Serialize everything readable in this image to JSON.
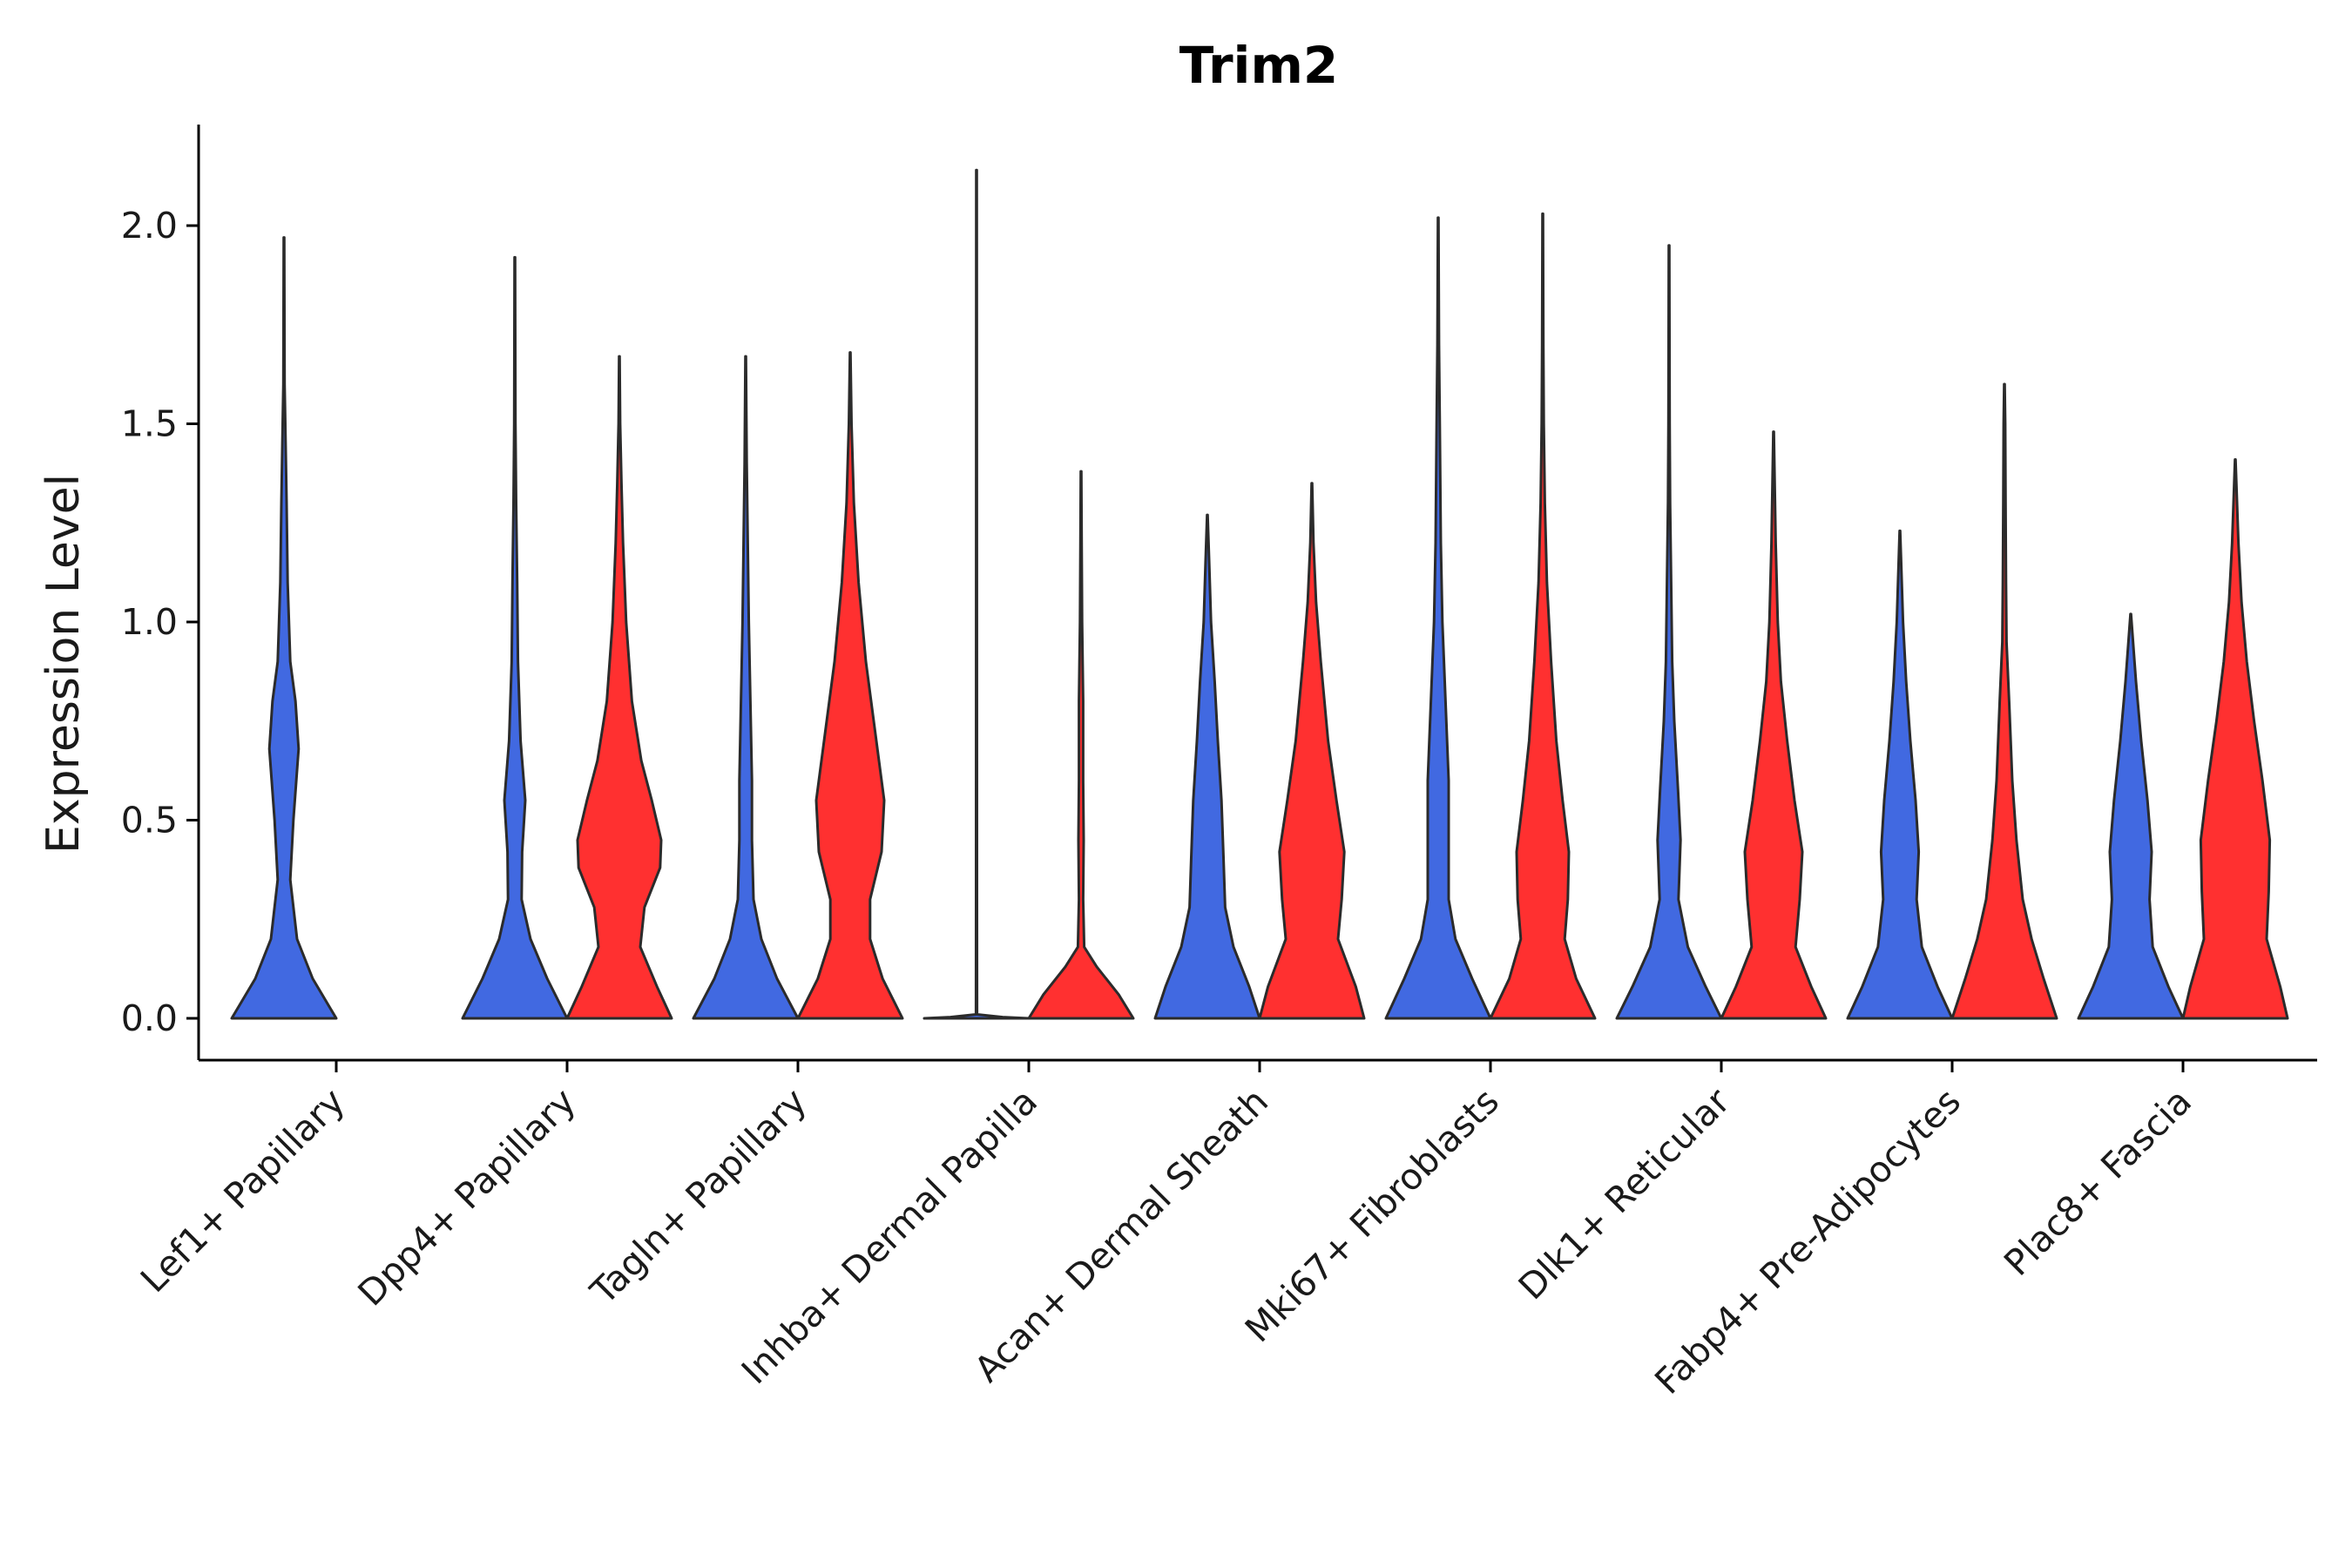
{
  "chart_data": {
    "type": "violin",
    "title": "Trim2",
    "xlabel": "",
    "ylabel": "Expression Level",
    "ylim": [
      -0.11,
      2.25
    ],
    "yticks": [
      0.0,
      0.5,
      1.0,
      1.5,
      2.0
    ],
    "ytick_labels": [
      "0.0",
      "0.5",
      "1.0",
      "1.5",
      "2.0"
    ],
    "grid": false,
    "legend": "none",
    "group_colors": {
      "blue": "#4169E1",
      "red": "#FF3030"
    },
    "categories": [
      "Lef1+ Papillary",
      "Dpp4+ Papillary",
      "Tagln+ Papillary",
      "Inhba+ Dermal Papilla",
      "Acan+ Dermal Sheath",
      "Mki67+ Fibroblasts",
      "Dlk1+ Reticular",
      "Fabp4+ Pre-Adipocytes",
      "Plac8+ Fascia"
    ],
    "violins": [
      {
        "category": "Lef1+ Papillary",
        "group": "blue",
        "max": 1.97,
        "density": [
          [
            0,
            1.0
          ],
          [
            0.1,
            0.55
          ],
          [
            0.2,
            0.25
          ],
          [
            0.35,
            0.12
          ],
          [
            0.5,
            0.18
          ],
          [
            0.68,
            0.28
          ],
          [
            0.8,
            0.22
          ],
          [
            0.9,
            0.12
          ],
          [
            1.1,
            0.07
          ],
          [
            1.3,
            0.05
          ],
          [
            1.5,
            0.025
          ],
          [
            1.6,
            0.012
          ],
          [
            1.97,
            0.005
          ]
        ]
      },
      {
        "category": "Dpp4+ Papillary",
        "group": "blue",
        "max": 1.92,
        "density": [
          [
            0,
            1.0
          ],
          [
            0.1,
            0.62
          ],
          [
            0.2,
            0.3
          ],
          [
            0.3,
            0.13
          ],
          [
            0.42,
            0.14
          ],
          [
            0.55,
            0.2
          ],
          [
            0.7,
            0.11
          ],
          [
            0.9,
            0.06
          ],
          [
            1.1,
            0.045
          ],
          [
            1.3,
            0.025
          ],
          [
            1.5,
            0.012
          ],
          [
            1.92,
            0.005
          ]
        ]
      },
      {
        "category": "Dpp4+ Papillary",
        "group": "red",
        "max": 1.67,
        "density": [
          [
            0,
            1.0
          ],
          [
            0.08,
            0.72
          ],
          [
            0.18,
            0.4
          ],
          [
            0.28,
            0.48
          ],
          [
            0.38,
            0.78
          ],
          [
            0.45,
            0.8
          ],
          [
            0.55,
            0.62
          ],
          [
            0.65,
            0.42
          ],
          [
            0.8,
            0.24
          ],
          [
            1.0,
            0.13
          ],
          [
            1.2,
            0.07
          ],
          [
            1.35,
            0.04
          ],
          [
            1.5,
            0.015
          ],
          [
            1.67,
            0.005
          ]
        ]
      },
      {
        "category": "Tagln+ Papillary",
        "group": "blue",
        "max": 1.67,
        "density": [
          [
            0,
            1.0
          ],
          [
            0.1,
            0.6
          ],
          [
            0.2,
            0.3
          ],
          [
            0.3,
            0.15
          ],
          [
            0.45,
            0.12
          ],
          [
            0.6,
            0.12
          ],
          [
            0.8,
            0.09
          ],
          [
            1.0,
            0.06
          ],
          [
            1.2,
            0.04
          ],
          [
            1.4,
            0.02
          ],
          [
            1.67,
            0.005
          ]
        ]
      },
      {
        "category": "Tagln+ Papillary",
        "group": "red",
        "max": 1.68,
        "density": [
          [
            0,
            1.0
          ],
          [
            0.1,
            0.62
          ],
          [
            0.2,
            0.38
          ],
          [
            0.3,
            0.38
          ],
          [
            0.42,
            0.6
          ],
          [
            0.55,
            0.65
          ],
          [
            0.7,
            0.5
          ],
          [
            0.9,
            0.3
          ],
          [
            1.1,
            0.16
          ],
          [
            1.3,
            0.07
          ],
          [
            1.5,
            0.025
          ],
          [
            1.68,
            0.005
          ]
        ]
      },
      {
        "category": "Inhba+ Dermal Papilla",
        "group": "blue",
        "max": 2.14,
        "density": [
          [
            0,
            1.0
          ],
          [
            0.003,
            0.5
          ],
          [
            0.01,
            0.01
          ],
          [
            0.3,
            0.008
          ],
          [
            2.14,
            0.005
          ]
        ]
      },
      {
        "category": "Inhba+ Dermal Papilla",
        "group": "red",
        "max": 1.38,
        "density": [
          [
            0,
            1.0
          ],
          [
            0.06,
            0.72
          ],
          [
            0.13,
            0.3
          ],
          [
            0.18,
            0.06
          ],
          [
            0.3,
            0.04
          ],
          [
            0.45,
            0.05
          ],
          [
            0.6,
            0.04
          ],
          [
            0.8,
            0.04
          ],
          [
            1.0,
            0.02
          ],
          [
            1.2,
            0.012
          ],
          [
            1.38,
            0.005
          ]
        ]
      },
      {
        "category": "Acan+ Dermal Sheath",
        "group": "blue",
        "max": 1.27,
        "density": [
          [
            0,
            1.0
          ],
          [
            0.08,
            0.8
          ],
          [
            0.18,
            0.5
          ],
          [
            0.28,
            0.34
          ],
          [
            0.4,
            0.31
          ],
          [
            0.55,
            0.27
          ],
          [
            0.7,
            0.2
          ],
          [
            0.85,
            0.14
          ],
          [
            1.0,
            0.07
          ],
          [
            1.15,
            0.035
          ],
          [
            1.27,
            0.005
          ]
        ]
      },
      {
        "category": "Acan+ Dermal Sheath",
        "group": "red",
        "max": 1.35,
        "density": [
          [
            0,
            1.0
          ],
          [
            0.08,
            0.84
          ],
          [
            0.2,
            0.5
          ],
          [
            0.3,
            0.57
          ],
          [
            0.42,
            0.62
          ],
          [
            0.55,
            0.47
          ],
          [
            0.7,
            0.31
          ],
          [
            0.9,
            0.17
          ],
          [
            1.05,
            0.08
          ],
          [
            1.2,
            0.03
          ],
          [
            1.35,
            0.005
          ]
        ]
      },
      {
        "category": "Mki67+ Fibroblasts",
        "group": "blue",
        "max": 2.02,
        "density": [
          [
            0,
            1.0
          ],
          [
            0.1,
            0.65
          ],
          [
            0.2,
            0.33
          ],
          [
            0.3,
            0.2
          ],
          [
            0.45,
            0.2
          ],
          [
            0.6,
            0.2
          ],
          [
            0.8,
            0.14
          ],
          [
            1.0,
            0.08
          ],
          [
            1.2,
            0.05
          ],
          [
            1.5,
            0.03
          ],
          [
            1.7,
            0.015
          ],
          [
            2.02,
            0.005
          ]
        ]
      },
      {
        "category": "Mki67+ Fibroblasts",
        "group": "red",
        "max": 2.03,
        "density": [
          [
            0,
            1.0
          ],
          [
            0.1,
            0.64
          ],
          [
            0.2,
            0.42
          ],
          [
            0.3,
            0.48
          ],
          [
            0.42,
            0.5
          ],
          [
            0.55,
            0.38
          ],
          [
            0.7,
            0.26
          ],
          [
            0.9,
            0.16
          ],
          [
            1.1,
            0.08
          ],
          [
            1.3,
            0.04
          ],
          [
            1.5,
            0.02
          ],
          [
            1.7,
            0.012
          ],
          [
            2.03,
            0.005
          ]
        ]
      },
      {
        "category": "Dlk1+ Reticular",
        "group": "blue",
        "max": 1.95,
        "density": [
          [
            0,
            1.0
          ],
          [
            0.08,
            0.7
          ],
          [
            0.18,
            0.36
          ],
          [
            0.3,
            0.18
          ],
          [
            0.45,
            0.22
          ],
          [
            0.58,
            0.17
          ],
          [
            0.75,
            0.1
          ],
          [
            0.9,
            0.06
          ],
          [
            1.1,
            0.04
          ],
          [
            1.3,
            0.02
          ],
          [
            1.5,
            0.012
          ],
          [
            1.95,
            0.005
          ]
        ]
      },
      {
        "category": "Dlk1+ Reticular",
        "group": "red",
        "max": 1.48,
        "density": [
          [
            0,
            1.0
          ],
          [
            0.08,
            0.72
          ],
          [
            0.18,
            0.42
          ],
          [
            0.3,
            0.5
          ],
          [
            0.42,
            0.55
          ],
          [
            0.55,
            0.4
          ],
          [
            0.7,
            0.26
          ],
          [
            0.85,
            0.14
          ],
          [
            1.0,
            0.08
          ],
          [
            1.2,
            0.04
          ],
          [
            1.48,
            0.005
          ]
        ]
      },
      {
        "category": "Fabp4+ Pre-Adipocytes",
        "group": "blue",
        "max": 1.23,
        "density": [
          [
            0,
            1.0
          ],
          [
            0.08,
            0.72
          ],
          [
            0.18,
            0.42
          ],
          [
            0.3,
            0.32
          ],
          [
            0.42,
            0.36
          ],
          [
            0.55,
            0.3
          ],
          [
            0.7,
            0.2
          ],
          [
            0.85,
            0.12
          ],
          [
            1.0,
            0.06
          ],
          [
            1.23,
            0.005
          ]
        ]
      },
      {
        "category": "Fabp4+ Pre-Adipocytes",
        "group": "red",
        "max": 1.6,
        "density": [
          [
            0,
            1.0
          ],
          [
            0.1,
            0.75
          ],
          [
            0.2,
            0.52
          ],
          [
            0.3,
            0.35
          ],
          [
            0.45,
            0.23
          ],
          [
            0.6,
            0.15
          ],
          [
            0.8,
            0.09
          ],
          [
            0.95,
            0.04
          ],
          [
            1.1,
            0.03
          ],
          [
            1.3,
            0.022
          ],
          [
            1.5,
            0.015
          ],
          [
            1.6,
            0.005
          ]
        ]
      },
      {
        "category": "Plac8+ Fascia",
        "group": "blue",
        "max": 1.02,
        "density": [
          [
            0,
            1.0
          ],
          [
            0.08,
            0.72
          ],
          [
            0.18,
            0.42
          ],
          [
            0.3,
            0.36
          ],
          [
            0.42,
            0.4
          ],
          [
            0.55,
            0.32
          ],
          [
            0.7,
            0.2
          ],
          [
            0.85,
            0.1
          ],
          [
            1.02,
            0.005
          ]
        ]
      },
      {
        "category": "Plac8+ Fascia",
        "group": "red",
        "max": 1.41,
        "density": [
          [
            0,
            1.0
          ],
          [
            0.08,
            0.86
          ],
          [
            0.2,
            0.6
          ],
          [
            0.32,
            0.64
          ],
          [
            0.45,
            0.66
          ],
          [
            0.6,
            0.52
          ],
          [
            0.75,
            0.36
          ],
          [
            0.9,
            0.22
          ],
          [
            1.05,
            0.12
          ],
          [
            1.2,
            0.06
          ],
          [
            1.41,
            0.005
          ]
        ]
      }
    ]
  }
}
